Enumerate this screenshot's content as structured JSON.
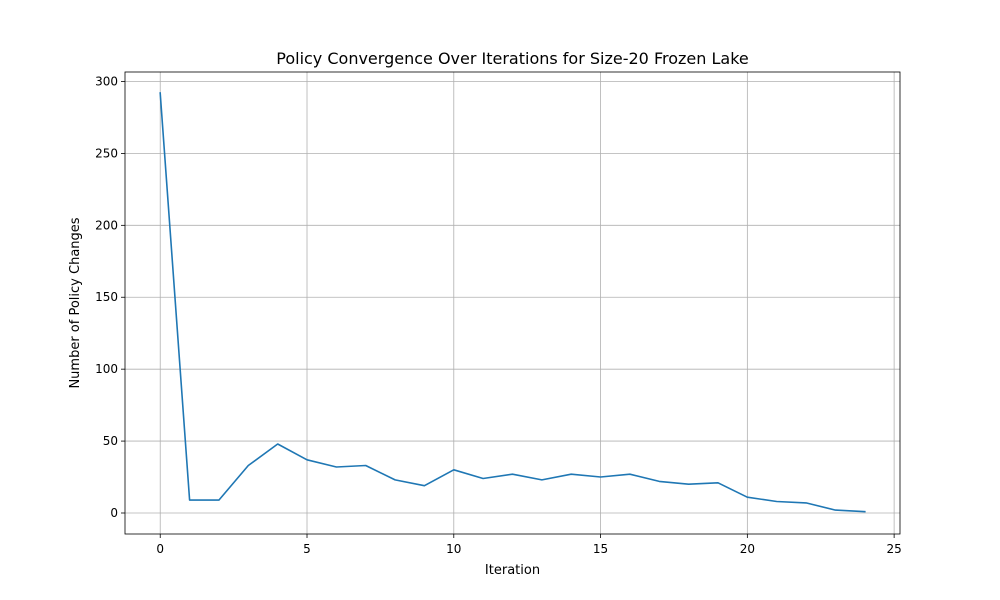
{
  "chart_data": {
    "type": "line",
    "title": "Policy Convergence Over Iterations for Size-20 Frozen Lake",
    "xlabel": "Iteration",
    "ylabel": "Number of Policy Changes",
    "xlim": [
      -1.2,
      25.2
    ],
    "ylim": [
      -14.6,
      306.6
    ],
    "xticks": [
      0,
      5,
      10,
      15,
      20,
      25
    ],
    "yticks": [
      0,
      50,
      100,
      150,
      200,
      250,
      300
    ],
    "grid": true,
    "legend": "none",
    "series": [
      {
        "color": "#1f77b4",
        "x": [
          0,
          1,
          2,
          3,
          4,
          5,
          6,
          7,
          8,
          9,
          10,
          11,
          12,
          13,
          14,
          15,
          16,
          17,
          18,
          19,
          20,
          21,
          22,
          23,
          24
        ],
        "y": [
          292,
          9,
          9,
          33,
          48,
          37,
          32,
          33,
          23,
          19,
          30,
          24,
          27,
          23,
          27,
          25,
          27,
          22,
          20,
          21,
          11,
          8,
          7,
          2,
          1
        ]
      }
    ]
  }
}
